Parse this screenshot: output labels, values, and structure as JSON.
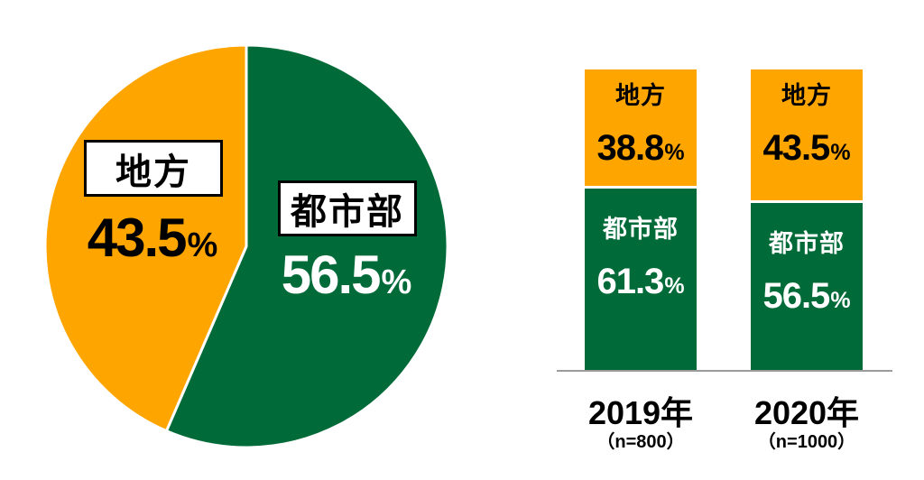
{
  "percent_sign": "%",
  "colors": {
    "rural": "#FFA500",
    "urban": "#006B38",
    "axis": "#9B9B9B",
    "slice_divider": "#FFFFFF",
    "text_dark": "#000000",
    "text_light": "#FFFFFF"
  },
  "chart_data": [
    {
      "type": "pie",
      "start_angle_deg": 0,
      "direction": "clockwise",
      "grid": false,
      "legend": "none",
      "slices": [
        {
          "label": "都市部",
          "value": 56.5,
          "color_key": "urban",
          "value_text_color": "#FFFFFF"
        },
        {
          "label": "地方",
          "value": 43.5,
          "color_key": "rural",
          "value_text_color": "#000000"
        }
      ]
    },
    {
      "type": "bar",
      "subtype": "stacked_100_percent",
      "categories": [
        "2019年",
        "2020年"
      ],
      "sample_sizes": [
        "（n=800）",
        "（n=1000）"
      ],
      "series": [
        {
          "name": "地方",
          "color_key": "rural",
          "values": [
            38.8,
            43.5
          ]
        },
        {
          "name": "都市部",
          "color_key": "urban",
          "values": [
            61.3,
            56.5
          ]
        }
      ],
      "stack_order_top_to_bottom": [
        "地方",
        "都市部"
      ],
      "ylim": [
        0,
        100
      ],
      "grid": false,
      "legend": "in-bar labels",
      "baseline_axis": true
    }
  ]
}
